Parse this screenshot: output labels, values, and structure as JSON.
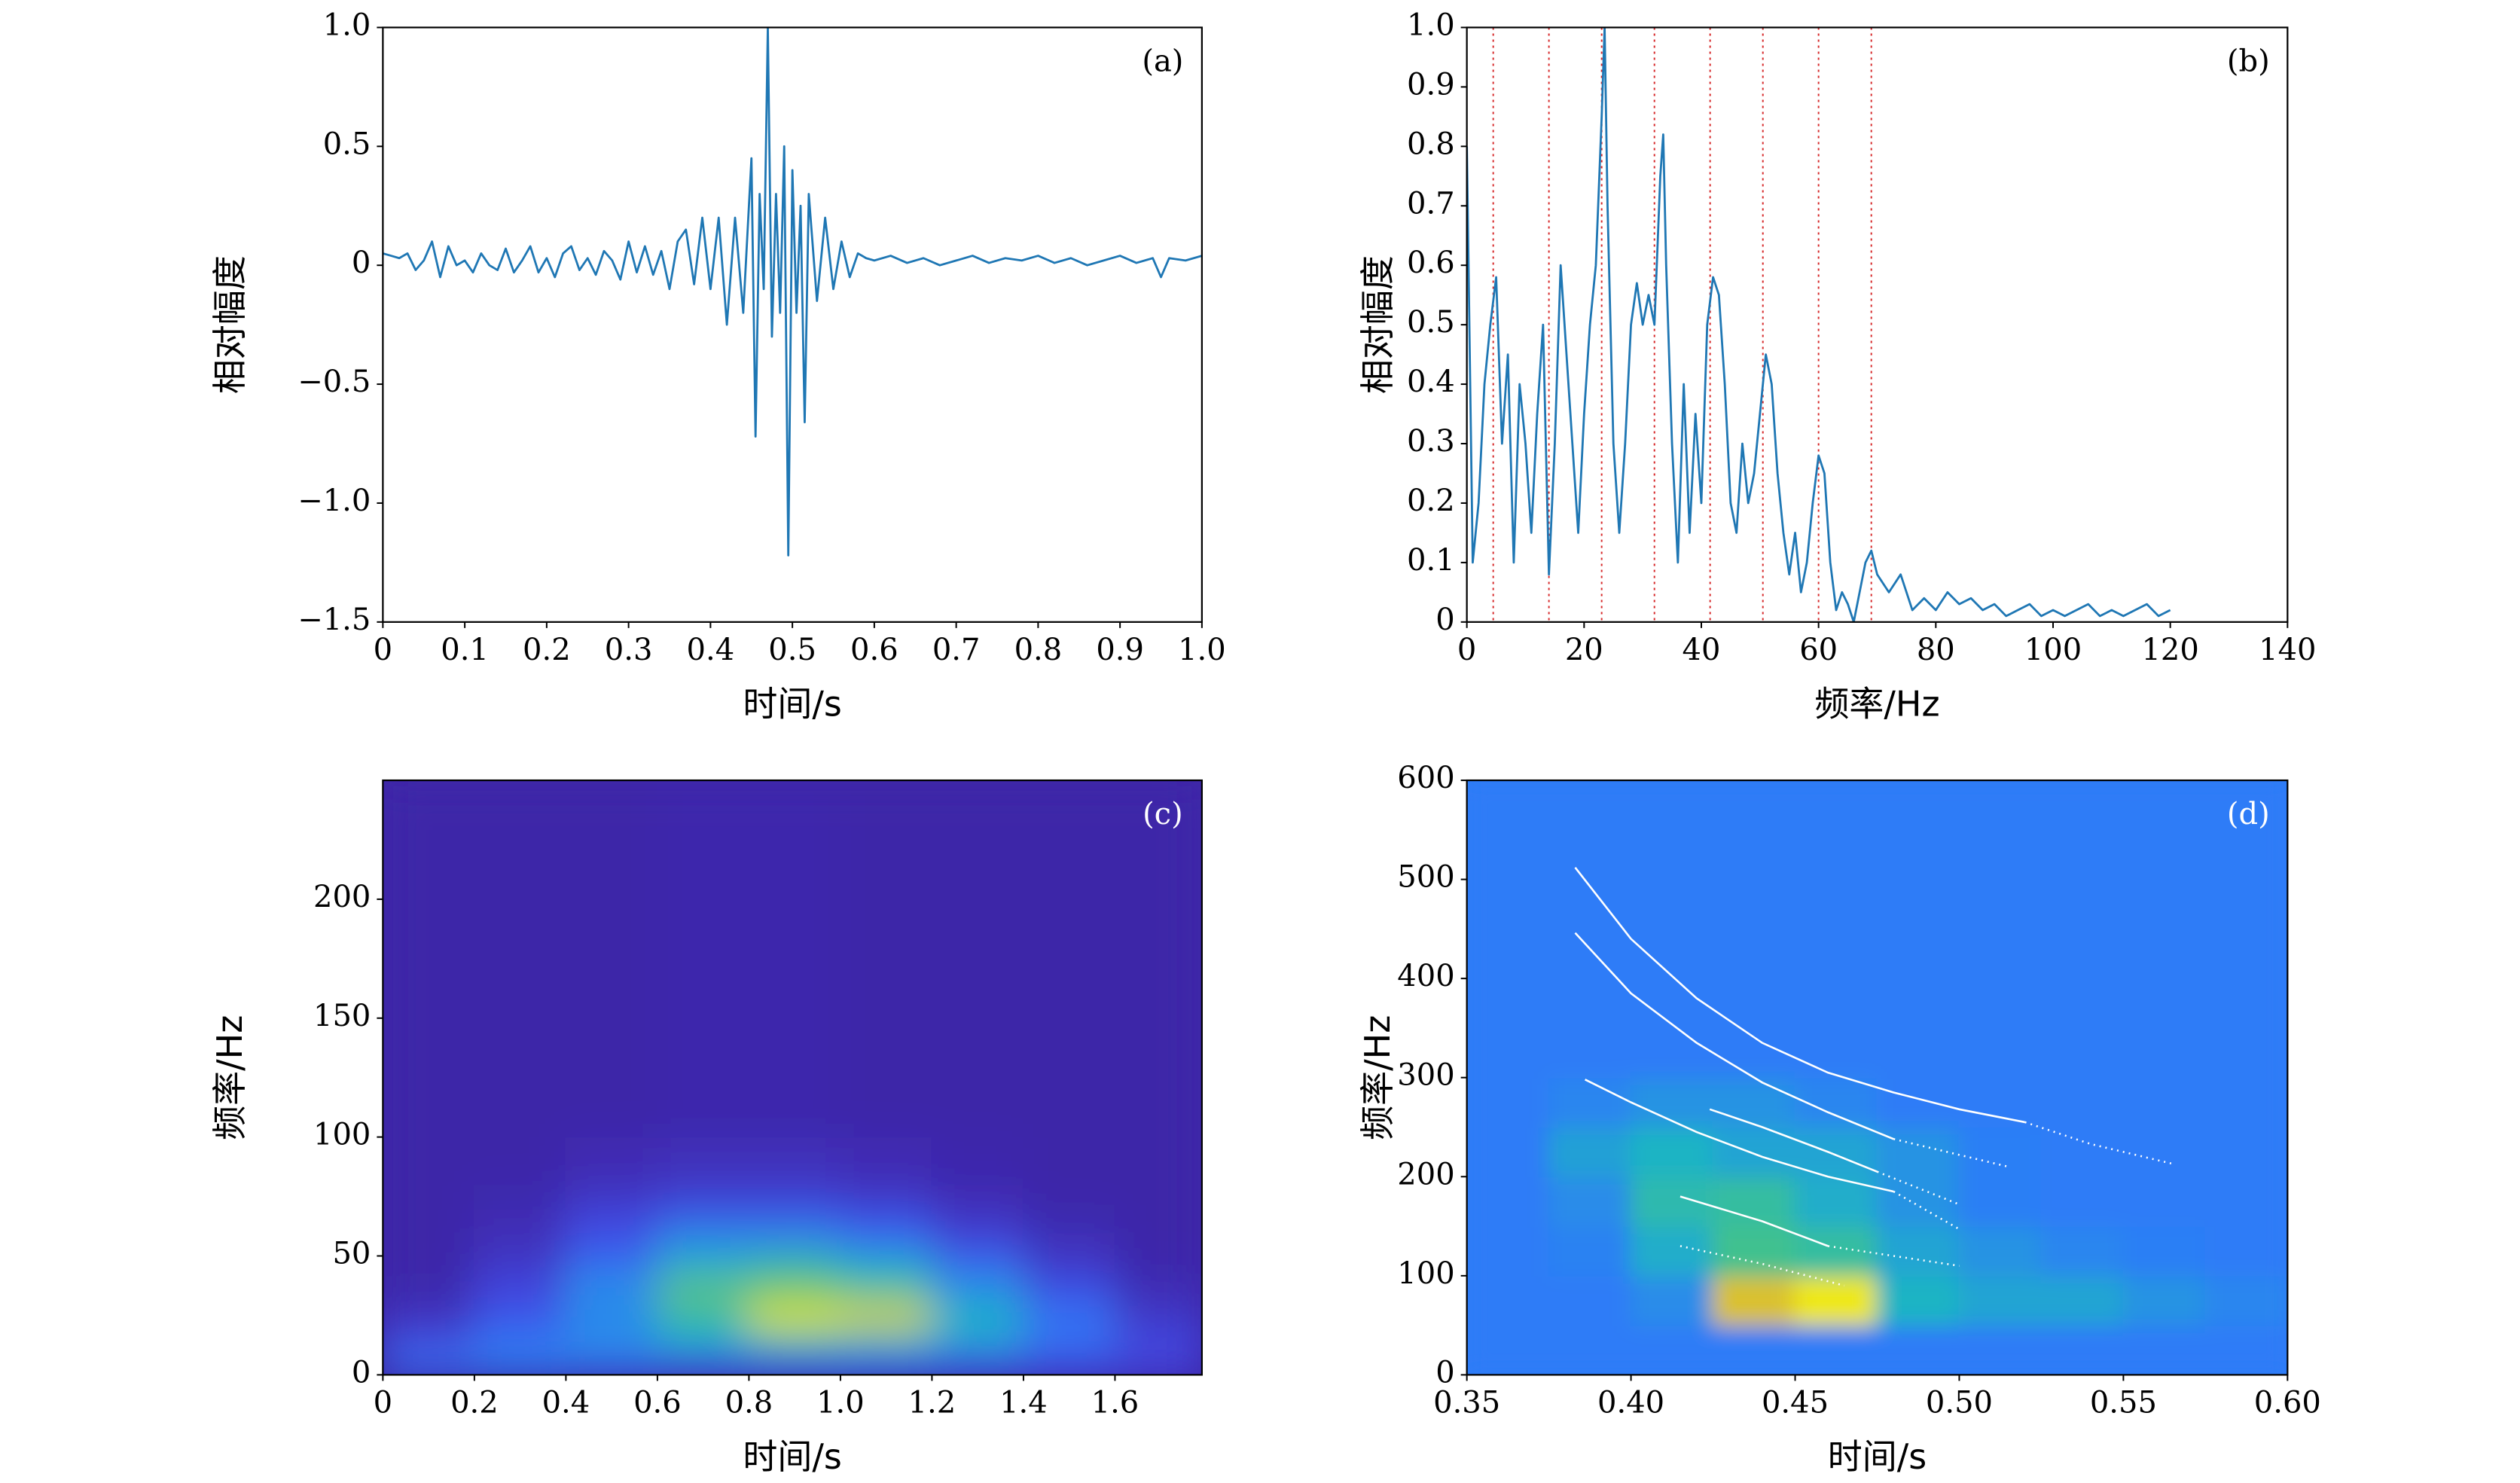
{
  "chart_data": [
    {
      "type": "line",
      "panel_label": "(a)",
      "xlabel": "时间/s",
      "ylabel": "相对幅度",
      "color": "#1f77b4",
      "xlim": [
        0,
        1
      ],
      "ylim": [
        -1.5,
        1
      ],
      "xticks": [
        0,
        0.1,
        0.2,
        0.3,
        0.4,
        0.5,
        0.6,
        0.7,
        0.8,
        0.9,
        {
          "value": 1,
          "label": "1.0"
        }
      ],
      "yticks": [
        {
          "value": -1.5,
          "label": "−1.5"
        },
        {
          "value": -1,
          "label": "−1.0"
        },
        {
          "value": -0.5,
          "label": "−0.5"
        },
        0,
        0.5,
        {
          "value": 1,
          "label": "1.0"
        }
      ],
      "x": [
        0,
        0.01,
        0.02,
        0.03,
        0.04,
        0.05,
        0.06,
        0.07,
        0.08,
        0.09,
        0.1,
        0.11,
        0.12,
        0.13,
        0.14,
        0.15,
        0.16,
        0.17,
        0.18,
        0.19,
        0.2,
        0.21,
        0.22,
        0.23,
        0.24,
        0.25,
        0.26,
        0.27,
        0.28,
        0.29,
        0.3,
        0.31,
        0.32,
        0.33,
        0.34,
        0.35,
        0.36,
        0.37,
        0.38,
        0.39,
        0.4,
        0.41,
        0.42,
        0.43,
        0.44,
        0.45,
        0.455,
        0.46,
        0.465,
        0.47,
        0.475,
        0.48,
        0.485,
        0.49,
        0.495,
        0.5,
        0.505,
        0.51,
        0.515,
        0.52,
        0.53,
        0.54,
        0.55,
        0.56,
        0.57,
        0.58,
        0.59,
        0.6,
        0.62,
        0.64,
        0.66,
        0.68,
        0.7,
        0.72,
        0.74,
        0.76,
        0.78,
        0.8,
        0.82,
        0.84,
        0.86,
        0.88,
        0.9,
        0.92,
        0.94,
        0.95,
        0.96,
        0.98,
        1.0
      ],
      "values": [
        0.05,
        0.04,
        0.03,
        0.05,
        -0.02,
        0.02,
        0.1,
        -0.05,
        0.08,
        0,
        0.02,
        -0.03,
        0.05,
        0,
        -0.02,
        0.07,
        -0.03,
        0.02,
        0.08,
        -0.03,
        0.03,
        -0.05,
        0.05,
        0.08,
        -0.02,
        0.03,
        -0.04,
        0.06,
        0.02,
        -0.06,
        0.1,
        -0.03,
        0.08,
        -0.04,
        0.06,
        -0.1,
        0.1,
        0.15,
        -0.08,
        0.2,
        -0.1,
        0.2,
        -0.25,
        0.2,
        -0.2,
        0.45,
        -0.72,
        0.3,
        -0.1,
        1.0,
        -0.3,
        0.3,
        -0.2,
        0.5,
        -1.22,
        0.4,
        -0.2,
        0.25,
        -0.66,
        0.3,
        -0.15,
        0.2,
        -0.1,
        0.1,
        -0.05,
        0.05,
        0.03,
        0.02,
        0.04,
        0.01,
        0.03,
        0,
        0.02,
        0.04,
        0.01,
        0.03,
        0.02,
        0.04,
        0.01,
        0.03,
        0,
        0.02,
        0.04,
        0.01,
        0.03,
        -0.05,
        0.03,
        0.02,
        0.04
      ]
    },
    {
      "type": "line",
      "panel_label": "(b)",
      "xlabel": "频率/Hz",
      "ylabel": "相对幅度",
      "color": "#1f77b4",
      "vlines": [
        4.5,
        14,
        23,
        32,
        41.5,
        50.5,
        60,
        69
      ],
      "vline_color": "#d62728",
      "xlim": [
        0,
        140
      ],
      "ylim": [
        0,
        1
      ],
      "xticks": [
        0,
        20,
        40,
        60,
        80,
        100,
        120,
        140
      ],
      "yticks": [
        0,
        0.1,
        0.2,
        0.3,
        0.4,
        0.5,
        0.6,
        0.7,
        0.8,
        0.9,
        {
          "value": 1,
          "label": "1.0"
        }
      ],
      "x": [
        0,
        1,
        2,
        3,
        4,
        5,
        6,
        7,
        8,
        9,
        10,
        11,
        12,
        13,
        14,
        15,
        16,
        17,
        18,
        19,
        20,
        21,
        22,
        23,
        23.5,
        24,
        25,
        26,
        27,
        28,
        29,
        30,
        31,
        32,
        33,
        33.5,
        34,
        35,
        36,
        37,
        38,
        39,
        40,
        41,
        42,
        43,
        44,
        45,
        46,
        47,
        48,
        49,
        50,
        51,
        52,
        53,
        54,
        55,
        56,
        57,
        58,
        59,
        60,
        61,
        62,
        63,
        64,
        65,
        66,
        67,
        68,
        69,
        70,
        72,
        74,
        76,
        78,
        80,
        82,
        84,
        86,
        88,
        90,
        92,
        94,
        96,
        98,
        100,
        102,
        104,
        106,
        108,
        110,
        112,
        114,
        116,
        118,
        120
      ],
      "values": [
        0.8,
        0.1,
        0.2,
        0.4,
        0.5,
        0.58,
        0.3,
        0.45,
        0.1,
        0.4,
        0.3,
        0.15,
        0.35,
        0.5,
        0.08,
        0.3,
        0.6,
        0.45,
        0.3,
        0.15,
        0.35,
        0.5,
        0.6,
        0.85,
        1.0,
        0.7,
        0.3,
        0.15,
        0.3,
        0.5,
        0.57,
        0.5,
        0.55,
        0.5,
        0.75,
        0.82,
        0.6,
        0.3,
        0.1,
        0.4,
        0.15,
        0.35,
        0.2,
        0.5,
        0.58,
        0.55,
        0.4,
        0.2,
        0.15,
        0.3,
        0.2,
        0.25,
        0.35,
        0.45,
        0.4,
        0.25,
        0.15,
        0.08,
        0.15,
        0.05,
        0.1,
        0.2,
        0.28,
        0.25,
        0.1,
        0.02,
        0.05,
        0.03,
        0,
        0.05,
        0.1,
        0.12,
        0.08,
        0.05,
        0.08,
        0.02,
        0.04,
        0.02,
        0.05,
        0.03,
        0.04,
        0.02,
        0.03,
        0.01,
        0.02,
        0.03,
        0.01,
        0.02,
        0.01,
        0.02,
        0.03,
        0.01,
        0.02,
        0.01,
        0.02,
        0.03,
        0.01,
        0.02
      ]
    },
    {
      "type": "heatmap",
      "panel_label": "(c)",
      "xlabel": "时间/s",
      "ylabel": "频率/Hz",
      "colormap": [
        "#3e26a8",
        "#4249e5",
        "#2d7df7",
        "#1fb4c4",
        "#4dc67a",
        "#d6bb30",
        "#f9fb0e"
      ],
      "xlim": [
        0,
        1.79
      ],
      "ylim": [
        0,
        250
      ],
      "xticks": [
        0,
        0.2,
        0.4,
        0.6,
        0.8,
        {
          "value": 1,
          "label": "1.0"
        },
        1.2,
        1.4,
        1.6
      ],
      "yticks": [
        0,
        50,
        100,
        150,
        200
      ],
      "x_edges": [
        0,
        0.2,
        0.4,
        0.6,
        0.8,
        1.0,
        1.2,
        1.4,
        1.6,
        1.79
      ],
      "y_edges": [
        0,
        10,
        20,
        30,
        40,
        50,
        60,
        70,
        80,
        100,
        250
      ],
      "values": [
        [
          0.3,
          0.35,
          0.3,
          0.25,
          0.3,
          0.3,
          0.25,
          0.2,
          0.15
        ],
        [
          0.15,
          0.3,
          0.4,
          0.5,
          0.6,
          0.55,
          0.45,
          0.3,
          0.15
        ],
        [
          0.05,
          0.2,
          0.35,
          0.55,
          0.95,
          0.9,
          0.5,
          0.3,
          0.08
        ],
        [
          0.02,
          0.15,
          0.4,
          0.7,
          0.7,
          0.6,
          0.4,
          0.2,
          0.04
        ],
        [
          0,
          0.1,
          0.3,
          0.5,
          0.6,
          0.5,
          0.3,
          0.1,
          0.01
        ],
        [
          0,
          0.05,
          0.2,
          0.4,
          0.4,
          0.3,
          0.15,
          0.05,
          0
        ],
        [
          0,
          0.03,
          0.15,
          0.25,
          0.25,
          0.2,
          0.08,
          0.02,
          0
        ],
        [
          0,
          0.02,
          0.08,
          0.12,
          0.12,
          0.08,
          0.03,
          0,
          0
        ],
        [
          0,
          0,
          0.03,
          0.05,
          0.05,
          0.03,
          0.01,
          0,
          0
        ],
        [
          0,
          0,
          0,
          0.01,
          0.01,
          0,
          0,
          0,
          0
        ]
      ]
    },
    {
      "type": "heatmap",
      "panel_label": "(d)",
      "xlabel": "时间/s",
      "ylabel": "频率/Hz",
      "colormap": [
        "#3e26a8",
        "#4249e5",
        "#2d7df7",
        "#1fb4c4",
        "#4dc67a",
        "#d6bb30",
        "#f9fb0e"
      ],
      "xlim": [
        0.35,
        0.6
      ],
      "ylim": [
        0,
        600
      ],
      "xticks": [
        0.35,
        {
          "value": 0.4,
          "label": "0.40"
        },
        0.45,
        {
          "value": 0.5,
          "label": "0.50"
        },
        0.55,
        {
          "value": 0.6,
          "label": "0.60"
        }
      ],
      "yticks": [
        0,
        100,
        200,
        300,
        400,
        500,
        600
      ],
      "x_edges": [
        0.35,
        0.375,
        0.4,
        0.425,
        0.45,
        0.475,
        0.5,
        0.525,
        0.55,
        0.575,
        0.6
      ],
      "y_edges": [
        0,
        50,
        100,
        150,
        200,
        250,
        300,
        600
      ],
      "values": [
        [
          0.33,
          0.33,
          0.33,
          0.33,
          0.33,
          0.33,
          0.33,
          0.33,
          0.33,
          0.33
        ],
        [
          0.33,
          0.33,
          0.38,
          0.85,
          0.95,
          0.5,
          0.45,
          0.45,
          0.4,
          0.36
        ],
        [
          0.33,
          0.35,
          0.48,
          0.62,
          0.58,
          0.45,
          0.4,
          0.36,
          0.34,
          0.33
        ],
        [
          0.33,
          0.38,
          0.55,
          0.58,
          0.48,
          0.4,
          0.34,
          0.33,
          0.33,
          0.33
        ],
        [
          0.33,
          0.44,
          0.5,
          0.45,
          0.45,
          0.4,
          0.34,
          0.33,
          0.33,
          0.33
        ],
        [
          0.33,
          0.36,
          0.4,
          0.4,
          0.36,
          0.33,
          0.33,
          0.33,
          0.33,
          0.33
        ],
        [
          0.33,
          0.33,
          0.33,
          0.33,
          0.33,
          0.33,
          0.33,
          0.33,
          0.33,
          0.33
        ]
      ],
      "curve_color": "#ffffff",
      "curves": [
        {
          "x": [
            0.383,
            0.4,
            0.42,
            0.44,
            0.46,
            0.48,
            0.5,
            0.52
          ],
          "values": [
            512,
            440,
            380,
            335,
            305,
            285,
            268,
            255
          ]
        },
        {
          "dashed": true,
          "x": [
            0.52,
            0.54,
            0.565
          ],
          "values": [
            255,
            233,
            213
          ]
        },
        {
          "x": [
            0.383,
            0.4,
            0.42,
            0.44,
            0.46,
            0.48
          ],
          "values": [
            446,
            385,
            335,
            295,
            265,
            238
          ]
        },
        {
          "dashed": true,
          "x": [
            0.48,
            0.5,
            0.515
          ],
          "values": [
            238,
            222,
            210
          ]
        },
        {
          "x": [
            0.386,
            0.4,
            0.42,
            0.44,
            0.46,
            0.48
          ],
          "values": [
            298,
            275,
            245,
            220,
            200,
            185
          ]
        },
        {
          "dashed": true,
          "x": [
            0.48,
            0.5
          ],
          "values": [
            185,
            147
          ]
        },
        {
          "x": [
            0.424,
            0.44,
            0.46,
            0.475
          ],
          "values": [
            268,
            250,
            225,
            205
          ]
        },
        {
          "dashed": true,
          "x": [
            0.475,
            0.5
          ],
          "values": [
            205,
            172
          ]
        },
        {
          "x": [
            0.415,
            0.44,
            0.46
          ],
          "values": [
            180,
            155,
            130
          ]
        },
        {
          "dashed": true,
          "x": [
            0.46,
            0.5
          ],
          "values": [
            130,
            110
          ]
        },
        {
          "dashed": true,
          "x": [
            0.415,
            0.44,
            0.465
          ],
          "values": [
            130,
            112,
            90
          ]
        }
      ]
    }
  ]
}
